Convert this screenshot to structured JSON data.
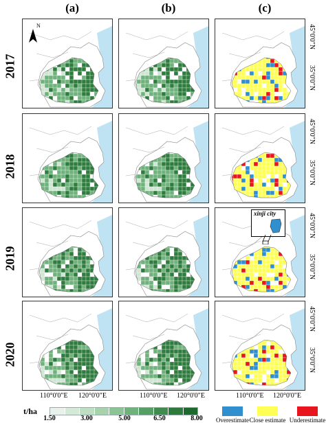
{
  "columns": [
    "(a)",
    "(b)",
    "(c)"
  ],
  "years": [
    "2017",
    "2018",
    "2019",
    "2020"
  ],
  "lat_labels": [
    "45°0'0\"N",
    "35°0'0\"N"
  ],
  "lon_labels": [
    "110°0'0\"E",
    "120°0'0\"E"
  ],
  "north_label": "N",
  "colorbar": {
    "unit": "t/ha",
    "ticks": [
      "1.50",
      "3.00",
      "5.00",
      "6.50",
      "8.00"
    ],
    "colors": [
      "#e8f2ea",
      "#d4e9d8",
      "#bedfc3",
      "#a6d2ac",
      "#8cc496",
      "#6fb27c",
      "#559f64",
      "#3f8c4e",
      "#2c7a3c",
      "#1c6a2e"
    ]
  },
  "legend": [
    {
      "label": "Overestimate",
      "color": "#2f8fcf"
    },
    {
      "label": "Close estimate",
      "color": "#ffff55"
    },
    {
      "label": "Underestimate",
      "color": "#e8141e"
    }
  ],
  "inset_label": "xinji city",
  "map_colors": {
    "sea": "#bfe3f3",
    "land_outline": "#888888",
    "green_dark": "#2e7d3e",
    "green_mid": "#6fb27c",
    "green_light": "#cfe6d3"
  }
}
